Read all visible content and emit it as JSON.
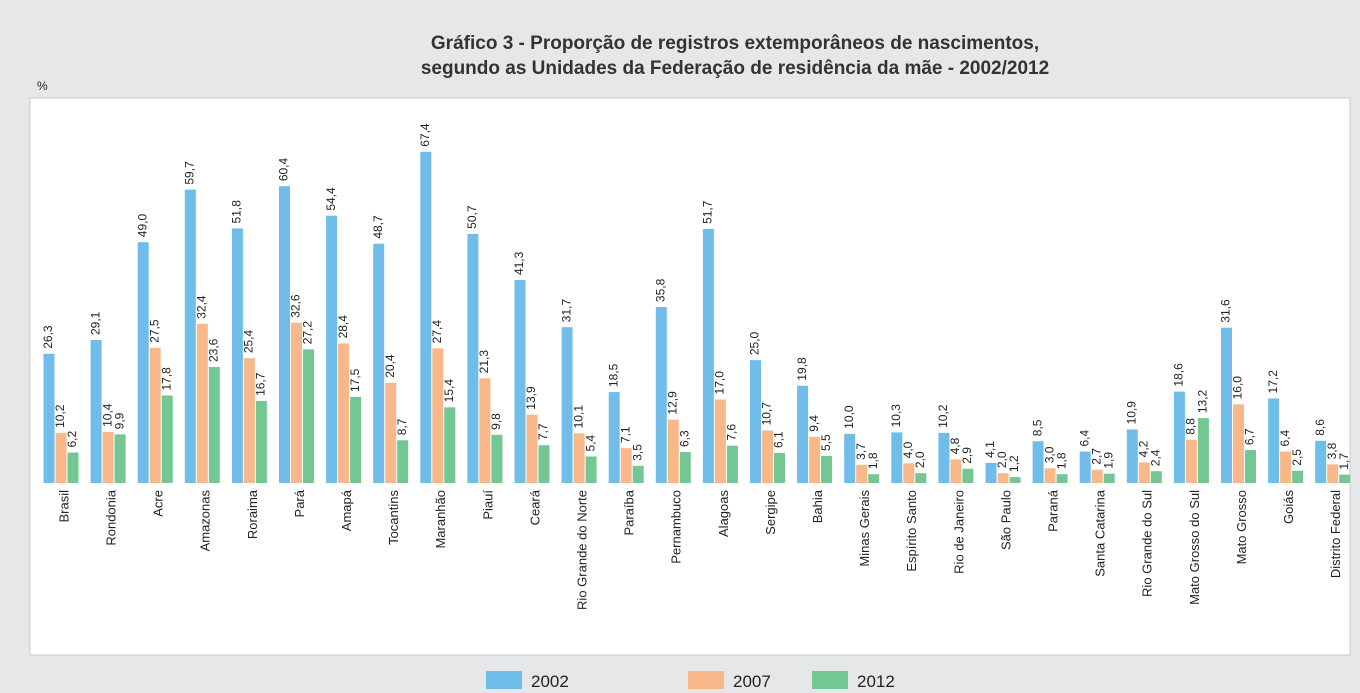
{
  "chart_data": {
    "type": "bar",
    "title": "Gráfico 3 - Proporção de registros extemporâneos de nascimentos,",
    "subtitle": "segundo as Unidades da Federação de residência da mãe - 2002/2012",
    "y_label": "%",
    "categories": [
      "Brasil",
      "Rondonia",
      "Acre",
      "Amazonas",
      "Roraima",
      "Pará",
      "Amapá",
      "Tocantins",
      "Maranhão",
      "Piauí",
      "Ceará",
      "Rio Grande do Norte",
      "Paraíba",
      "Pernambuco",
      "Alagoas",
      "Sergipe",
      "Bahia",
      "Minas Gerais",
      "Espírito Santo",
      "Rio de Janeiro",
      "São Paulo",
      "Paraná",
      "Santa Catarina",
      "Rio Grande do Sul",
      "Mato Grosso do Sul",
      "Mato Grosso",
      "Goiás",
      "Distrito Federal"
    ],
    "series": [
      {
        "name": "2002",
        "color": "#6fbde8",
        "values": [
          26.3,
          29.1,
          49.0,
          59.7,
          51.8,
          60.4,
          54.4,
          48.7,
          67.4,
          50.7,
          41.3,
          31.7,
          18.5,
          35.8,
          51.7,
          25.0,
          19.8,
          10.0,
          10.3,
          10.2,
          4.1,
          8.5,
          6.4,
          10.9,
          18.6,
          31.6,
          17.2,
          8.6
        ],
        "value_labels": [
          "26,3",
          "29,1",
          "49,0",
          "59,7",
          "51,8",
          "60,4",
          "54,4",
          "48,7",
          "67,4",
          "50,7",
          "41,3",
          "31,7",
          "18,5",
          "35,8",
          "51,7",
          "25,0",
          "19,8",
          "10,0",
          "10,3",
          "10,2",
          "4,1",
          "8,5",
          "6,4",
          "10,9",
          "18,6",
          "31,6",
          "17,2",
          "8,6"
        ]
      },
      {
        "name": "2007",
        "color": "#f9b889",
        "values": [
          10.2,
          10.4,
          27.5,
          32.4,
          25.4,
          32.6,
          28.4,
          20.4,
          27.4,
          21.3,
          13.9,
          10.1,
          7.1,
          12.9,
          17.0,
          10.7,
          9.4,
          3.7,
          4.0,
          4.8,
          2.0,
          3.0,
          2.7,
          4.2,
          8.8,
          16.0,
          6.4,
          3.8
        ],
        "value_labels": [
          "10,2",
          "10,4",
          "27,5",
          "32,4",
          "25,4",
          "32,6",
          "28,4",
          "20,4",
          "27,4",
          "21,3",
          "13,9",
          "10,1",
          "7,1",
          "12,9",
          "17,0",
          "10,7",
          "9,4",
          "3,7",
          "4,0",
          "4,8",
          "2,0",
          "3,0",
          "2,7",
          "4,2",
          "8,8",
          "16,0",
          "6,4",
          "3,8"
        ]
      },
      {
        "name": "2012",
        "color": "#73c793",
        "values": [
          6.2,
          9.9,
          17.8,
          23.6,
          16.7,
          27.2,
          17.5,
          8.7,
          15.4,
          9.8,
          7.7,
          5.4,
          3.5,
          6.3,
          7.6,
          6.1,
          5.5,
          1.8,
          2.0,
          2.9,
          1.2,
          1.8,
          1.9,
          2.4,
          13.2,
          6.7,
          2.5,
          1.7
        ],
        "value_labels": [
          "6,2",
          "9,9",
          "17,8",
          "23,6",
          "16,7",
          "27,2",
          "17,5",
          "8,7",
          "15,4",
          "9,8",
          "7,7",
          "5,4",
          "3,5",
          "6,3",
          "7,6",
          "6,1",
          "5,5",
          "1,8",
          "2,0",
          "2,9",
          "1,2",
          "1,8",
          "1,9",
          "2,4",
          "13,2",
          "6,7",
          "2,5",
          "1,7"
        ]
      }
    ],
    "ylim": [
      0,
      70
    ]
  }
}
